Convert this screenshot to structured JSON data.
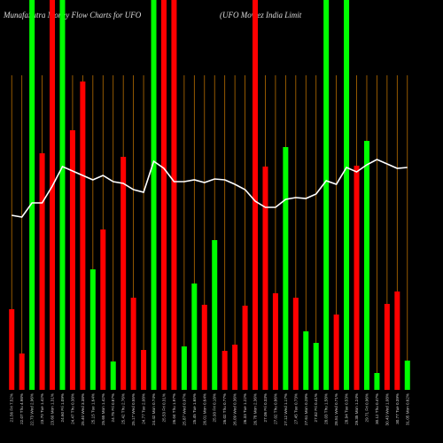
{
  "chart_data": {
    "type": "bar",
    "title": "MunafaSutra Money Flow Charts for UFO",
    "subtitle": "(UFO Moviez India Limit",
    "categories": [
      "21.56 Fri 7.52%",
      "22.07 Thu 4.98%",
      "22.73 Wed 2.96%",
      "23.70 Tue 1.42%",
      "23.60 Mon 1.31%",
      "24.60 Fri 1.09%",
      "24.47 Thu 0.38%",
      "25.40 Wed 3.38%",
      "25.15 Tue 1.64%",
      "25.65 Mon 1.42%",
      "24.75 Fri 0.87%",
      "25.42 Thu 2.76%",
      "25.17 Wed 0.55%",
      "24.77 Tue 2.08%",
      "24.42 Mon 0.74%",
      "25.53 Fri 0.31%",
      "26.04 Thu 1.97%",
      "25.87 Wed 0.97%",
      "25.45 Tue 1.65%",
      "26.01 Mon 0.64%",
      "25.93 Fri 0.18%",
      "26.02 Thu 0.77%",
      "26.09 Wed 0.36%",
      "26.33 Tue 1.22%",
      "26.78 Mon 2.36%",
      "27.06 Fri 0.33%",
      "27.02 Thu 0.86%",
      "27.12 Wed 1.17%",
      "27.45 Tue 0.73%",
      "27.61 Mon 0.28%",
      "27.82 Fri 0.41%",
      "28.03 Thu 1.58%",
      "28.51 Wed 0.71%",
      "28.94 Tue 0.53%",
      "29.35 Mon 1.24%",
      "29.71 Fri 0.96%",
      "30.12 Thu 0.47%",
      "30.43 Wed 1.08%",
      "30.77 Tue 0.39%",
      "31.05 Mon 0.62%"
    ],
    "values": [
      91,
      41,
      440,
      267,
      440,
      440,
      293,
      348,
      136,
      181,
      32,
      263,
      104,
      45,
      440,
      440,
      440,
      49,
      120,
      96,
      169,
      44,
      51,
      95,
      440,
      252,
      109,
      274,
      104,
      66,
      53,
      440,
      85,
      440,
      253,
      281,
      19,
      97,
      111,
      33
    ],
    "colors": [
      "#ff0000",
      "#ff0000",
      "#00ff00",
      "#ff0000",
      "#ff0000",
      "#00ff00",
      "#ff0000",
      "#ff0000",
      "#00ff00",
      "#ff0000",
      "#00ff00",
      "#ff0000",
      "#ff0000",
      "#ff0000",
      "#00ff00",
      "#ff0000",
      "#ff0000",
      "#00ff00",
      "#00ff00",
      "#ff0000",
      "#00ff00",
      "#ff0000",
      "#ff0000",
      "#ff0000",
      "#ff0000",
      "#ff0000",
      "#ff0000",
      "#00ff00",
      "#ff0000",
      "#00ff00",
      "#00ff00",
      "#00ff00",
      "#ff0000",
      "#00ff00",
      "#ff0000",
      "#00ff00",
      "#00ff00",
      "#ff0000",
      "#ff0000",
      "#00ff00"
    ],
    "line": {
      "color": "#ffffff",
      "values": [
        197,
        195,
        211,
        211,
        230,
        252,
        247,
        242,
        237,
        242,
        235,
        233,
        226,
        223,
        258,
        250,
        235,
        235,
        237,
        234,
        238,
        237,
        232,
        226,
        213,
        206,
        206,
        215,
        217,
        216,
        221,
        236,
        232,
        251,
        246,
        254,
        260,
        255,
        250,
        251
      ]
    },
    "ylim": [
      0,
      440
    ],
    "grid_color": "#b86e00"
  }
}
